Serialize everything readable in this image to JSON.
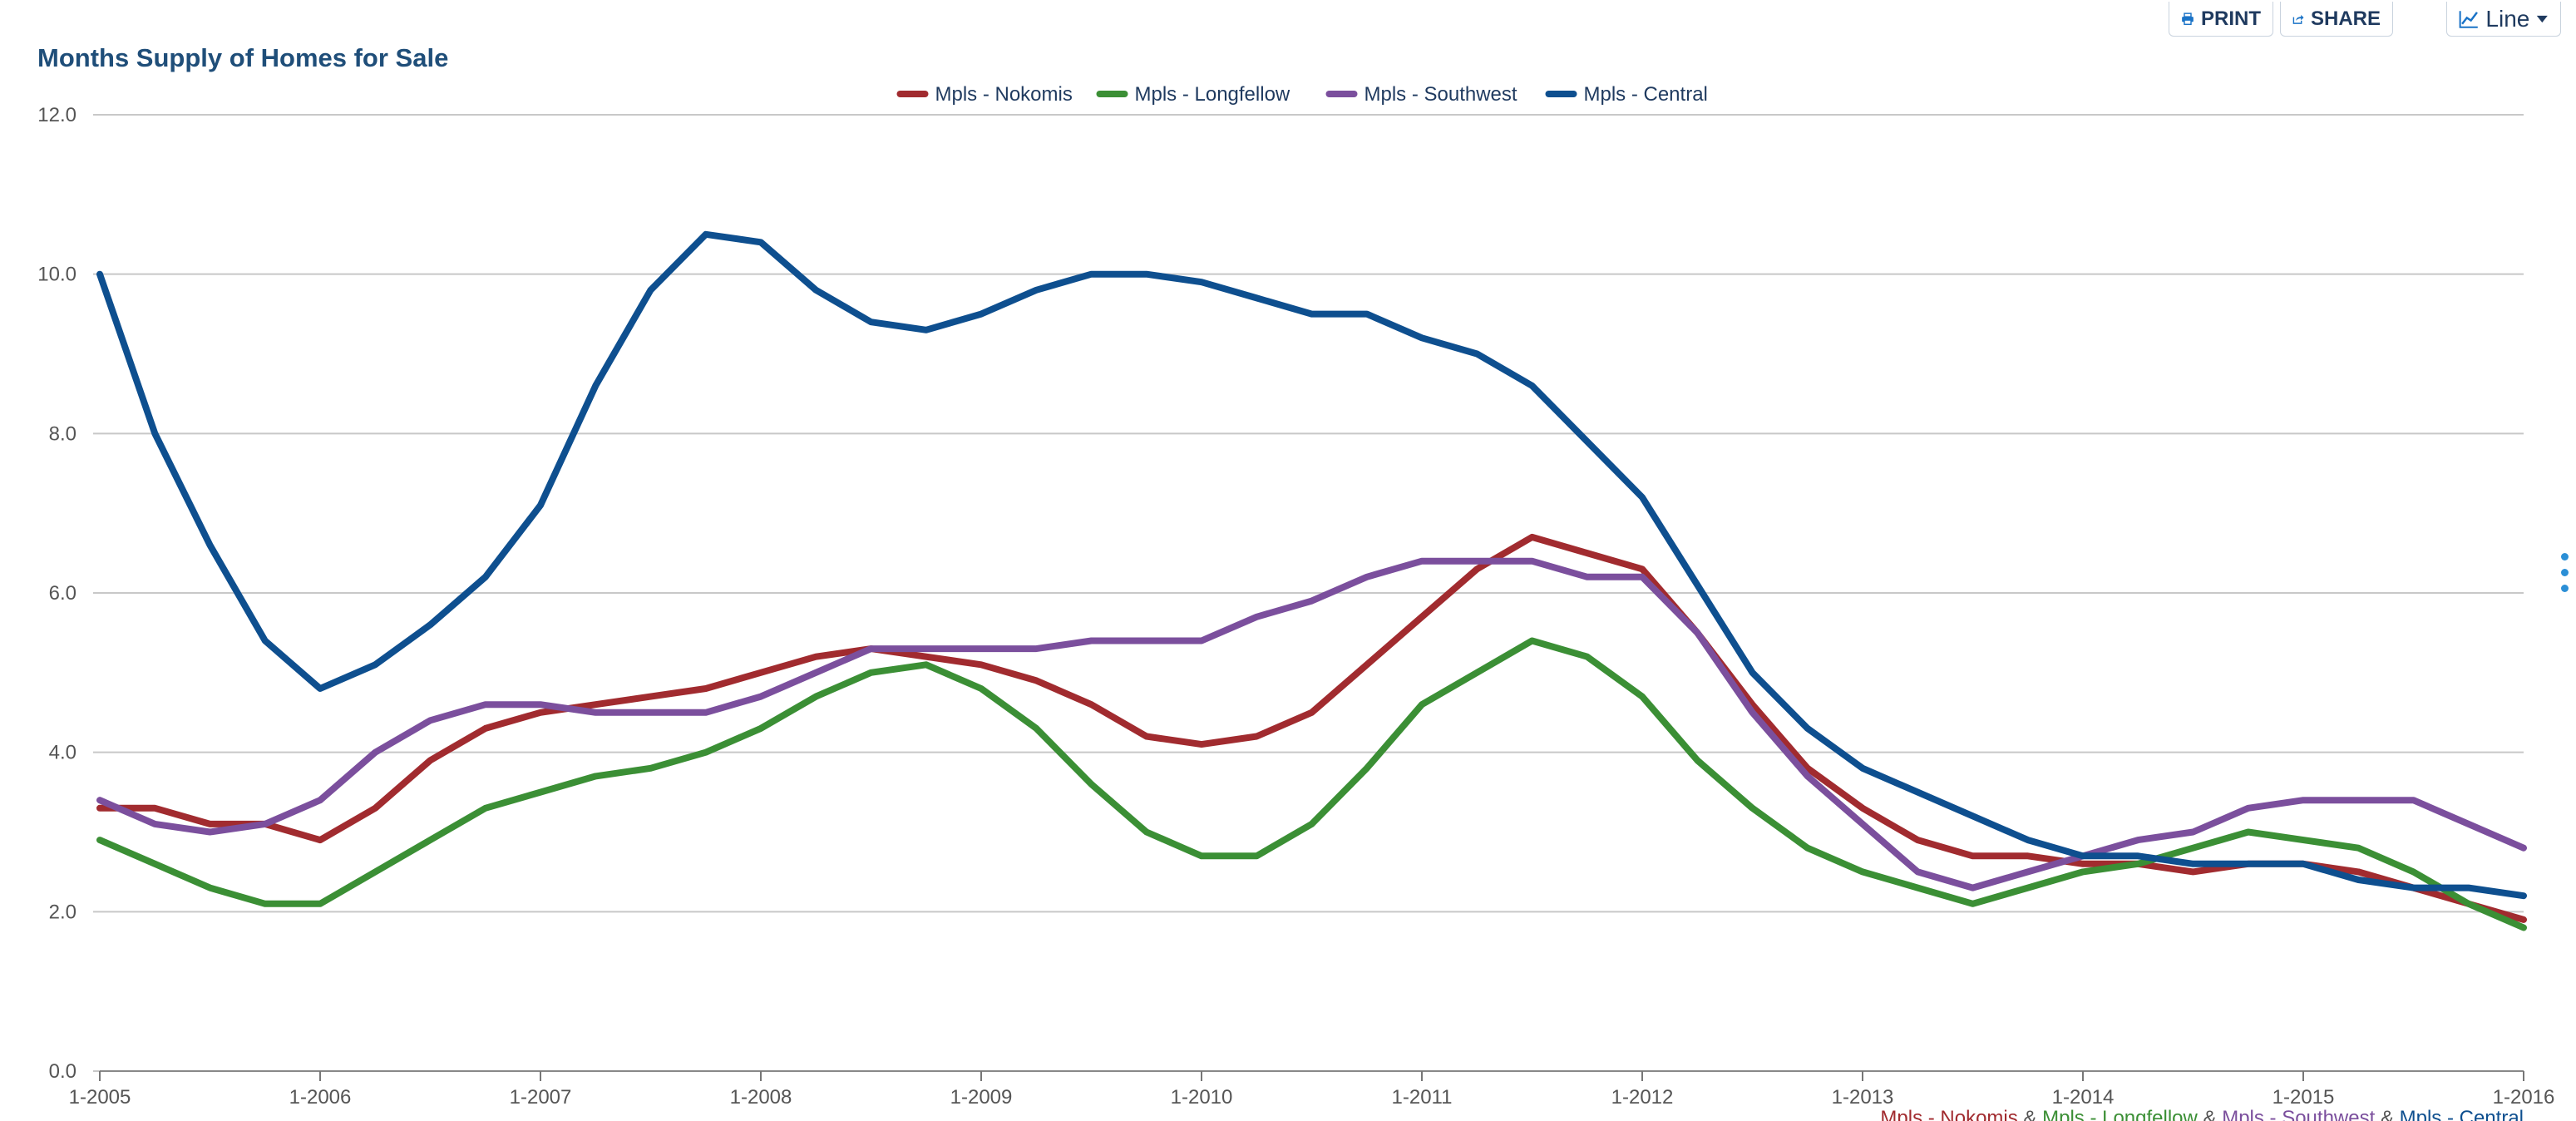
{
  "toolbar": {
    "print_label": "PRINT",
    "share_label": "SHARE",
    "view_label": "Line"
  },
  "chart_data": {
    "type": "line",
    "title": "Months Supply of Homes for Sale",
    "xlabel": "",
    "ylabel": "",
    "ylim": [
      0,
      12
    ],
    "yticks": [
      "0.0",
      "2.0",
      "4.0",
      "6.0",
      "8.0",
      "10.0",
      "12.0"
    ],
    "xticks": [
      "1-2005",
      "1-2006",
      "1-2007",
      "1-2008",
      "1-2009",
      "1-2010",
      "1-2011",
      "1-2012",
      "1-2013",
      "1-2014",
      "1-2015",
      "1-2016"
    ],
    "grid": "horizontal",
    "legend": "top-center",
    "footer_note": "Mpls - Nokomis & Mpls - Longfellow & Mpls - Southwest & Mpls - Central",
    "series": [
      {
        "name": "Mpls - Nokomis",
        "color": "#a12b2f",
        "points": [
          [
            "2005-01",
            3.3
          ],
          [
            "2005-04",
            3.3
          ],
          [
            "2005-07",
            3.1
          ],
          [
            "2005-10",
            3.1
          ],
          [
            "2006-01",
            2.9
          ],
          [
            "2006-04",
            3.3
          ],
          [
            "2006-07",
            3.9
          ],
          [
            "2006-10",
            4.3
          ],
          [
            "2007-01",
            4.5
          ],
          [
            "2007-04",
            4.6
          ],
          [
            "2007-07",
            4.7
          ],
          [
            "2007-10",
            4.8
          ],
          [
            "2008-01",
            5.0
          ],
          [
            "2008-04",
            5.2
          ],
          [
            "2008-07",
            5.3
          ],
          [
            "2008-10",
            5.2
          ],
          [
            "2009-01",
            5.1
          ],
          [
            "2009-04",
            4.9
          ],
          [
            "2009-07",
            4.6
          ],
          [
            "2009-10",
            4.2
          ],
          [
            "2010-01",
            4.1
          ],
          [
            "2010-04",
            4.2
          ],
          [
            "2010-07",
            4.5
          ],
          [
            "2010-10",
            5.1
          ],
          [
            "2011-01",
            5.7
          ],
          [
            "2011-04",
            6.3
          ],
          [
            "2011-07",
            6.7
          ],
          [
            "2011-10",
            6.5
          ],
          [
            "2012-01",
            6.3
          ],
          [
            "2012-04",
            5.5
          ],
          [
            "2012-07",
            4.6
          ],
          [
            "2012-10",
            3.8
          ],
          [
            "2013-01",
            3.3
          ],
          [
            "2013-04",
            2.9
          ],
          [
            "2013-07",
            2.7
          ],
          [
            "2013-10",
            2.7
          ],
          [
            "2014-01",
            2.6
          ],
          [
            "2014-04",
            2.6
          ],
          [
            "2014-07",
            2.5
          ],
          [
            "2014-10",
            2.6
          ],
          [
            "2015-01",
            2.6
          ],
          [
            "2015-04",
            2.5
          ],
          [
            "2015-07",
            2.3
          ],
          [
            "2015-10",
            2.1
          ],
          [
            "2016-01",
            1.9
          ]
        ]
      },
      {
        "name": "Mpls - Longfellow",
        "color": "#3b8f35",
        "points": [
          [
            "2005-01",
            2.9
          ],
          [
            "2005-04",
            2.6
          ],
          [
            "2005-07",
            2.3
          ],
          [
            "2005-10",
            2.1
          ],
          [
            "2006-01",
            2.1
          ],
          [
            "2006-04",
            2.5
          ],
          [
            "2006-07",
            2.9
          ],
          [
            "2006-10",
            3.3
          ],
          [
            "2007-01",
            3.5
          ],
          [
            "2007-04",
            3.7
          ],
          [
            "2007-07",
            3.8
          ],
          [
            "2007-10",
            4.0
          ],
          [
            "2008-01",
            4.3
          ],
          [
            "2008-04",
            4.7
          ],
          [
            "2008-07",
            5.0
          ],
          [
            "2008-10",
            5.1
          ],
          [
            "2009-01",
            4.8
          ],
          [
            "2009-04",
            4.3
          ],
          [
            "2009-07",
            3.6
          ],
          [
            "2009-10",
            3.0
          ],
          [
            "2010-01",
            2.7
          ],
          [
            "2010-04",
            2.7
          ],
          [
            "2010-07",
            3.1
          ],
          [
            "2010-10",
            3.8
          ],
          [
            "2011-01",
            4.6
          ],
          [
            "2011-04",
            5.0
          ],
          [
            "2011-07",
            5.4
          ],
          [
            "2011-10",
            5.2
          ],
          [
            "2012-01",
            4.7
          ],
          [
            "2012-04",
            3.9
          ],
          [
            "2012-07",
            3.3
          ],
          [
            "2012-10",
            2.8
          ],
          [
            "2013-01",
            2.5
          ],
          [
            "2013-04",
            2.3
          ],
          [
            "2013-07",
            2.1
          ],
          [
            "2013-10",
            2.3
          ],
          [
            "2014-01",
            2.5
          ],
          [
            "2014-04",
            2.6
          ],
          [
            "2014-07",
            2.8
          ],
          [
            "2014-10",
            3.0
          ],
          [
            "2015-01",
            2.9
          ],
          [
            "2015-04",
            2.8
          ],
          [
            "2015-07",
            2.5
          ],
          [
            "2015-10",
            2.1
          ],
          [
            "2016-01",
            1.8
          ]
        ]
      },
      {
        "name": "Mpls - Southwest",
        "color": "#7b4f9d",
        "points": [
          [
            "2005-01",
            3.4
          ],
          [
            "2005-04",
            3.1
          ],
          [
            "2005-07",
            3.0
          ],
          [
            "2005-10",
            3.1
          ],
          [
            "2006-01",
            3.4
          ],
          [
            "2006-04",
            4.0
          ],
          [
            "2006-07",
            4.4
          ],
          [
            "2006-10",
            4.6
          ],
          [
            "2007-01",
            4.6
          ],
          [
            "2007-04",
            4.5
          ],
          [
            "2007-07",
            4.5
          ],
          [
            "2007-10",
            4.5
          ],
          [
            "2008-01",
            4.7
          ],
          [
            "2008-04",
            5.0
          ],
          [
            "2008-07",
            5.3
          ],
          [
            "2008-10",
            5.3
          ],
          [
            "2009-01",
            5.3
          ],
          [
            "2009-04",
            5.3
          ],
          [
            "2009-07",
            5.4
          ],
          [
            "2009-10",
            5.4
          ],
          [
            "2010-01",
            5.4
          ],
          [
            "2010-04",
            5.7
          ],
          [
            "2010-07",
            5.9
          ],
          [
            "2010-10",
            6.2
          ],
          [
            "2011-01",
            6.4
          ],
          [
            "2011-04",
            6.4
          ],
          [
            "2011-07",
            6.4
          ],
          [
            "2011-10",
            6.2
          ],
          [
            "2012-01",
            6.2
          ],
          [
            "2012-04",
            5.5
          ],
          [
            "2012-07",
            4.5
          ],
          [
            "2012-10",
            3.7
          ],
          [
            "2013-01",
            3.1
          ],
          [
            "2013-04",
            2.5
          ],
          [
            "2013-07",
            2.3
          ],
          [
            "2013-10",
            2.5
          ],
          [
            "2014-01",
            2.7
          ],
          [
            "2014-04",
            2.9
          ],
          [
            "2014-07",
            3.0
          ],
          [
            "2014-10",
            3.3
          ],
          [
            "2015-01",
            3.4
          ],
          [
            "2015-04",
            3.4
          ],
          [
            "2015-07",
            3.4
          ],
          [
            "2015-10",
            3.1
          ],
          [
            "2016-01",
            2.8
          ]
        ]
      },
      {
        "name": "Mpls - Central",
        "color": "#0e4f8f",
        "points": [
          [
            "2005-01",
            10.0
          ],
          [
            "2005-04",
            8.0
          ],
          [
            "2005-07",
            6.6
          ],
          [
            "2005-10",
            5.4
          ],
          [
            "2006-01",
            4.8
          ],
          [
            "2006-04",
            5.1
          ],
          [
            "2006-07",
            5.6
          ],
          [
            "2006-10",
            6.2
          ],
          [
            "2007-01",
            7.1
          ],
          [
            "2007-04",
            8.6
          ],
          [
            "2007-07",
            9.8
          ],
          [
            "2007-10",
            10.5
          ],
          [
            "2008-01",
            10.4
          ],
          [
            "2008-04",
            9.8
          ],
          [
            "2008-07",
            9.4
          ],
          [
            "2008-10",
            9.3
          ],
          [
            "2009-01",
            9.5
          ],
          [
            "2009-04",
            9.8
          ],
          [
            "2009-07",
            10.0
          ],
          [
            "2009-10",
            10.0
          ],
          [
            "2010-01",
            9.9
          ],
          [
            "2010-04",
            9.7
          ],
          [
            "2010-07",
            9.5
          ],
          [
            "2010-10",
            9.5
          ],
          [
            "2011-01",
            9.2
          ],
          [
            "2011-04",
            9.0
          ],
          [
            "2011-07",
            8.6
          ],
          [
            "2011-10",
            7.9
          ],
          [
            "2012-01",
            7.2
          ],
          [
            "2012-04",
            6.1
          ],
          [
            "2012-07",
            5.0
          ],
          [
            "2012-10",
            4.3
          ],
          [
            "2013-01",
            3.8
          ],
          [
            "2013-04",
            3.5
          ],
          [
            "2013-07",
            3.2
          ],
          [
            "2013-10",
            2.9
          ],
          [
            "2014-01",
            2.7
          ],
          [
            "2014-04",
            2.7
          ],
          [
            "2014-07",
            2.6
          ],
          [
            "2014-10",
            2.6
          ],
          [
            "2015-01",
            2.6
          ],
          [
            "2015-04",
            2.4
          ],
          [
            "2015-07",
            2.3
          ],
          [
            "2015-10",
            2.3
          ],
          [
            "2016-01",
            2.2
          ]
        ]
      }
    ]
  }
}
